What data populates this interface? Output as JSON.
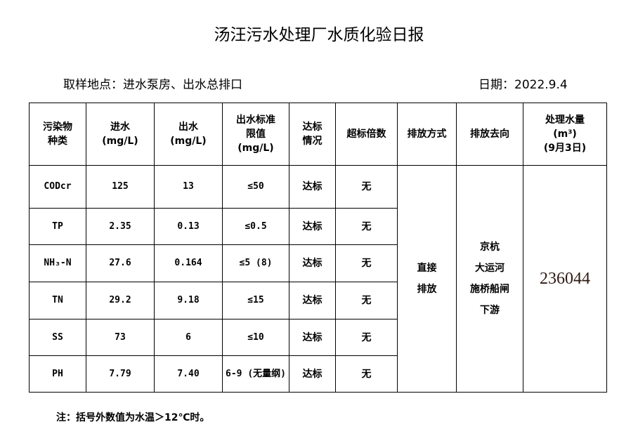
{
  "title": "汤汪污水处理厂水质化验日报",
  "location": "取样地点：进水泵房、出水总排口",
  "date": "日期：2022.9.4",
  "headers": {
    "pollutant_1": "污染物",
    "pollutant_2": "种类",
    "inflow_1": "进水",
    "inflow_2": "(mg/L)",
    "outflow_1": "出水",
    "outflow_2": "(mg/L)",
    "limit_1": "出水标准",
    "limit_2": "限值",
    "limit_3": "(mg/L)",
    "status_1": "达标",
    "status_2": "情况",
    "exceed": "超标倍数",
    "method": "排放方式",
    "dest": "排放去向",
    "volume_1": "处理水量",
    "volume_2": "(m³)",
    "volume_3": "(9月3日)"
  },
  "rows": [
    {
      "name": "CODcr",
      "in": "125",
      "out": "13",
      "limit": "≤50",
      "status": "达标",
      "exceed": "无"
    },
    {
      "name": "TP",
      "in": "2.35",
      "out": "0.13",
      "limit": "≤0.5",
      "status": "达标",
      "exceed": "无"
    },
    {
      "name": "NH₃-N",
      "in": "27.6",
      "out": "0.164",
      "limit": "≤5 (8)",
      "status": "达标",
      "exceed": "无"
    },
    {
      "name": "TN",
      "in": "29.2",
      "out": "9.18",
      "limit": "≤15",
      "status": "达标",
      "exceed": "无"
    },
    {
      "name": "SS",
      "in": "73",
      "out": "6",
      "limit": "≤10",
      "status": "达标",
      "exceed": "无"
    },
    {
      "name": "PH",
      "in": "7.79",
      "out": "7.40",
      "limit": "6-9 (无量纲)",
      "status": "达标",
      "exceed": "无"
    }
  ],
  "method": [
    "直接",
    "排放"
  ],
  "dest": [
    "京杭",
    "大运河",
    "施桥船闸",
    "下游"
  ],
  "volume": "236044",
  "note": "注：括号外数值为水温＞12℃时。"
}
